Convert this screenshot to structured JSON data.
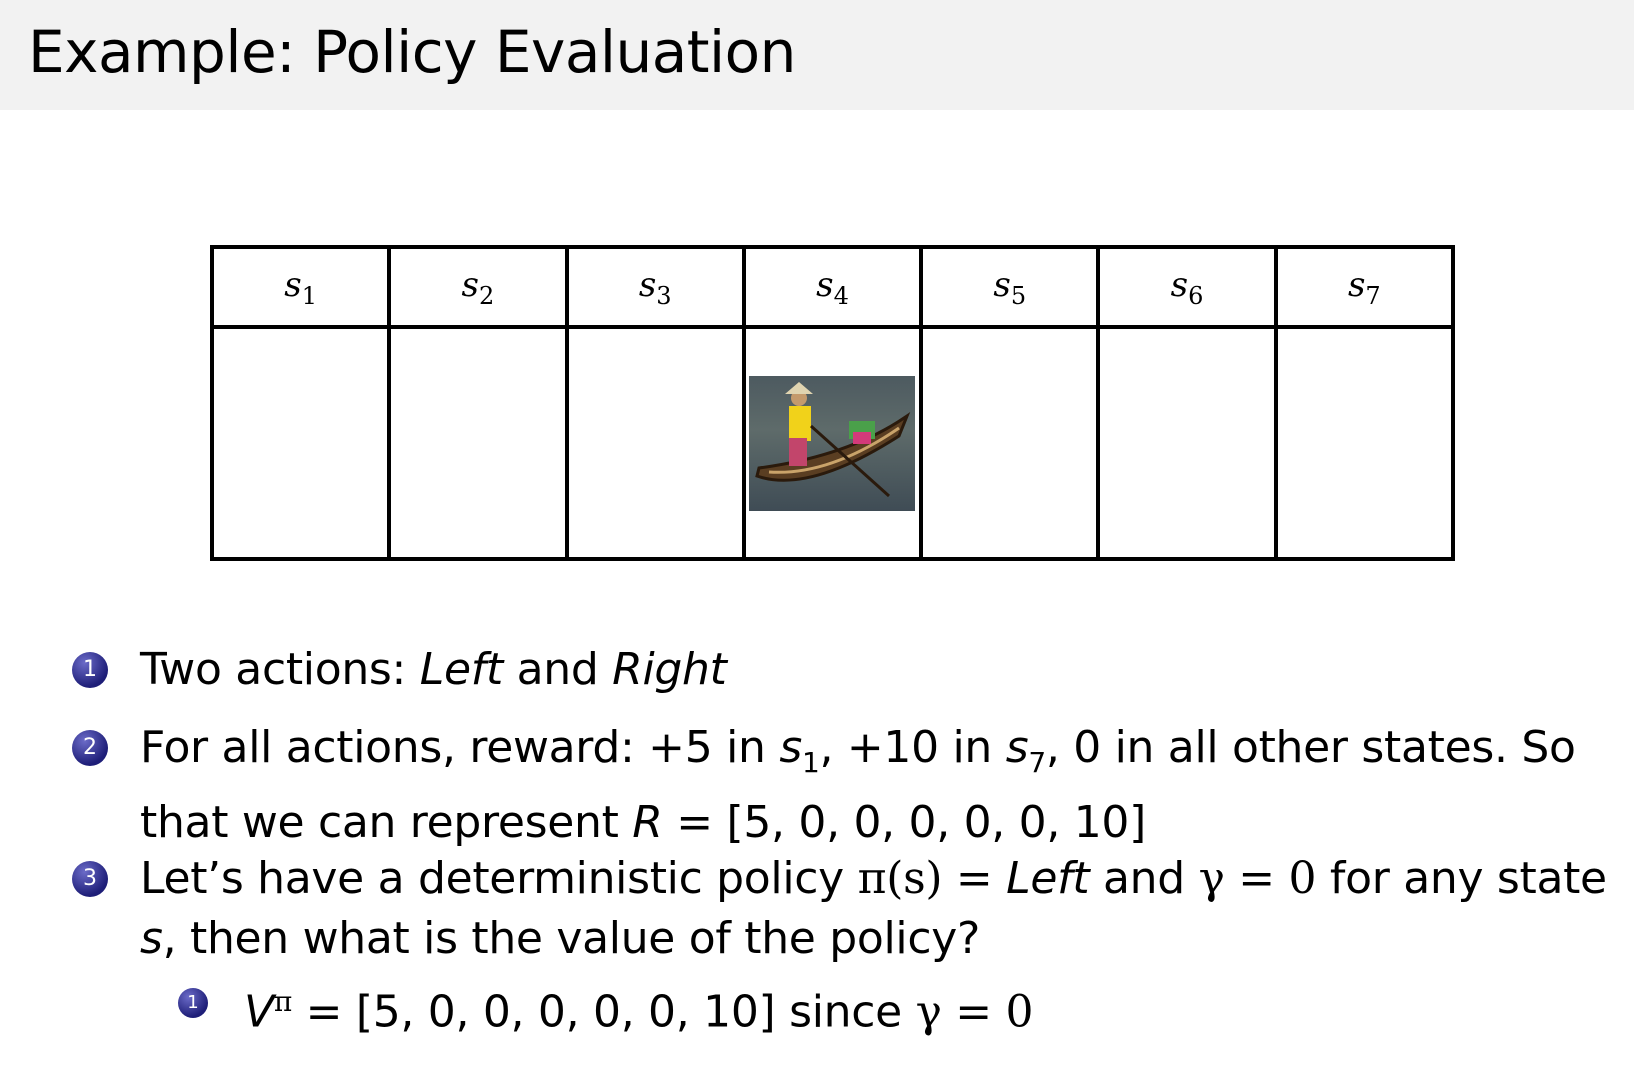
{
  "title": "Example: Policy Evaluation",
  "states": [
    {
      "s": "s",
      "n": "1"
    },
    {
      "s": "s",
      "n": "2"
    },
    {
      "s": "s",
      "n": "3"
    },
    {
      "s": "s",
      "n": "4"
    },
    {
      "s": "s",
      "n": "5"
    },
    {
      "s": "s",
      "n": "6"
    },
    {
      "s": "s",
      "n": "7"
    }
  ],
  "agent_state_index": 4,
  "items": [
    {
      "num": "1",
      "a": "Two actions: ",
      "b": "Left",
      "c": " and ",
      "d": "Right"
    },
    {
      "num": "2",
      "a": "For all actions, reward: +5 in ",
      "s1": "s",
      "n1": "1",
      "b": ", +10 in ",
      "s7": "s",
      "n7": "7",
      "c": ", 0 in all other states. So",
      "line2a": "that we can represent ",
      "R": "R",
      "line2b": " = [5, 0, 0, 0, 0, 0, 10]"
    },
    {
      "num": "3",
      "a": "Let’s have a deterministic policy ",
      "pi": "π(s) = ",
      "left": "Left",
      "b": " and ",
      "gamma": "γ = 0",
      "c": " for any state",
      "s": "s",
      "d": ", then what is the value of the policy?"
    }
  ],
  "subitem": {
    "num": "1",
    "V": "V",
    "pi": "π",
    "eq": " = [5, 0, 0, 0, 0, 0, 10]",
    "since": " since ",
    "gamma": "γ = 0"
  },
  "colors": {
    "titlebar": "#f2f2f2",
    "bullet": "#1e1e78"
  }
}
